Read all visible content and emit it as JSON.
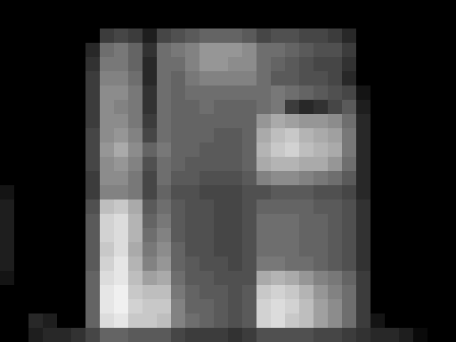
{
  "chart_data": {
    "type": "heatmap",
    "tick_labels": false,
    "cells": [
      [
        0,
        0,
        0,
        0,
        0,
        0,
        0,
        0,
        0,
        0,
        0,
        0,
        0,
        0,
        0,
        0,
        0,
        0,
        0,
        0,
        0,
        0,
        0,
        0,
        0,
        0,
        0,
        0,
        0,
        0,
        0,
        0
      ],
      [
        0,
        0,
        0,
        0,
        0,
        0,
        0,
        0,
        0,
        0,
        0,
        0,
        0,
        0,
        0,
        0,
        0,
        0,
        0,
        0,
        0,
        0,
        0,
        0,
        0,
        0,
        0,
        0,
        0,
        0,
        0,
        0
      ],
      [
        0,
        0,
        0,
        0,
        0,
        0,
        0,
        60,
        70,
        60,
        30,
        70,
        80,
        90,
        100,
        100,
        100,
        90,
        70,
        80,
        80,
        70,
        70,
        60,
        40,
        0,
        0,
        0,
        0,
        0,
        0,
        0
      ],
      [
        0,
        0,
        0,
        0,
        0,
        0,
        40,
        110,
        120,
        100,
        50,
        110,
        120,
        130,
        150,
        150,
        150,
        140,
        110,
        110,
        100,
        90,
        80,
        80,
        60,
        0,
        0,
        0,
        0,
        0,
        0,
        0
      ],
      [
        0,
        0,
        0,
        0,
        0,
        0,
        50,
        120,
        120,
        100,
        40,
        110,
        110,
        130,
        150,
        150,
        140,
        140,
        110,
        100,
        90,
        80,
        70,
        70,
        50,
        0,
        0,
        0,
        0,
        0,
        0,
        0
      ],
      [
        0,
        0,
        0,
        0,
        0,
        0,
        60,
        130,
        130,
        110,
        40,
        110,
        100,
        120,
        130,
        130,
        130,
        130,
        110,
        90,
        90,
        80,
        80,
        70,
        40,
        0,
        0,
        0,
        0,
        0,
        0,
        0
      ],
      [
        0,
        0,
        0,
        0,
        0,
        0,
        60,
        140,
        140,
        120,
        50,
        110,
        100,
        110,
        110,
        110,
        110,
        110,
        110,
        120,
        110,
        100,
        90,
        80,
        70,
        20,
        0,
        0,
        0,
        0,
        0,
        0
      ],
      [
        0,
        0,
        0,
        0,
        0,
        0,
        60,
        140,
        130,
        120,
        50,
        110,
        100,
        100,
        110,
        100,
        100,
        100,
        110,
        120,
        60,
        40,
        50,
        70,
        90,
        30,
        0,
        0,
        0,
        0,
        0,
        0
      ],
      [
        0,
        0,
        0,
        0,
        0,
        0,
        60,
        140,
        140,
        120,
        60,
        110,
        100,
        100,
        100,
        100,
        100,
        100,
        150,
        170,
        160,
        150,
        150,
        140,
        110,
        40,
        0,
        0,
        0,
        0,
        0,
        0
      ],
      [
        0,
        0,
        0,
        0,
        0,
        0,
        70,
        140,
        150,
        130,
        70,
        110,
        100,
        100,
        100,
        90,
        90,
        100,
        170,
        190,
        200,
        180,
        170,
        160,
        120,
        40,
        0,
        0,
        0,
        0,
        0,
        0
      ],
      [
        0,
        0,
        0,
        0,
        0,
        0,
        70,
        150,
        170,
        140,
        100,
        120,
        100,
        100,
        90,
        90,
        90,
        100,
        180,
        200,
        210,
        190,
        180,
        170,
        120,
        40,
        0,
        0,
        0,
        0,
        0,
        0
      ],
      [
        0,
        0,
        0,
        0,
        0,
        0,
        70,
        140,
        150,
        130,
        80,
        110,
        100,
        90,
        90,
        90,
        90,
        100,
        170,
        180,
        180,
        170,
        170,
        150,
        110,
        40,
        0,
        0,
        0,
        0,
        0,
        0
      ],
      [
        0,
        0,
        0,
        0,
        0,
        0,
        60,
        140,
        140,
        120,
        70,
        110,
        90,
        90,
        80,
        80,
        80,
        90,
        130,
        140,
        140,
        130,
        120,
        110,
        90,
        40,
        0,
        0,
        0,
        0,
        0,
        0
      ],
      [
        20,
        0,
        0,
        0,
        0,
        0,
        60,
        130,
        130,
        120,
        70,
        100,
        80,
        80,
        70,
        70,
        70,
        80,
        80,
        90,
        90,
        90,
        80,
        80,
        70,
        40,
        0,
        0,
        0,
        0,
        0,
        0
      ],
      [
        30,
        0,
        0,
        0,
        0,
        0,
        80,
        190,
        200,
        170,
        90,
        110,
        90,
        80,
        80,
        70,
        70,
        80,
        100,
        100,
        100,
        100,
        90,
        90,
        80,
        50,
        0,
        0,
        0,
        0,
        0,
        0
      ],
      [
        30,
        0,
        0,
        0,
        0,
        0,
        90,
        210,
        220,
        180,
        100,
        120,
        90,
        80,
        80,
        70,
        70,
        80,
        110,
        110,
        110,
        100,
        100,
        90,
        80,
        50,
        0,
        0,
        0,
        0,
        0,
        0
      ],
      [
        30,
        0,
        0,
        0,
        0,
        0,
        90,
        210,
        220,
        180,
        110,
        130,
        90,
        80,
        80,
        70,
        70,
        80,
        110,
        110,
        110,
        100,
        100,
        90,
        80,
        50,
        0,
        0,
        0,
        0,
        0,
        0
      ],
      [
        30,
        0,
        0,
        0,
        0,
        0,
        90,
        200,
        220,
        170,
        120,
        140,
        100,
        80,
        80,
        70,
        70,
        80,
        110,
        110,
        110,
        100,
        100,
        90,
        80,
        50,
        0,
        0,
        0,
        0,
        0,
        0
      ],
      [
        30,
        0,
        0,
        0,
        0,
        0,
        90,
        210,
        230,
        180,
        130,
        150,
        100,
        90,
        80,
        80,
        70,
        80,
        120,
        120,
        110,
        110,
        100,
        90,
        80,
        50,
        0,
        0,
        0,
        0,
        0,
        0
      ],
      [
        20,
        0,
        0,
        0,
        0,
        0,
        100,
        220,
        230,
        190,
        160,
        170,
        110,
        90,
        90,
        80,
        80,
        80,
        170,
        180,
        170,
        150,
        130,
        120,
        100,
        60,
        0,
        0,
        0,
        0,
        0,
        0
      ],
      [
        0,
        0,
        0,
        0,
        0,
        0,
        100,
        230,
        240,
        200,
        190,
        190,
        120,
        100,
        90,
        90,
        80,
        90,
        200,
        210,
        200,
        180,
        150,
        130,
        110,
        60,
        0,
        0,
        0,
        0,
        0,
        0
      ],
      [
        0,
        0,
        0,
        0,
        0,
        0,
        100,
        230,
        240,
        210,
        200,
        200,
        130,
        100,
        100,
        90,
        80,
        90,
        210,
        220,
        210,
        190,
        160,
        140,
        110,
        60,
        0,
        0,
        0,
        0,
        0,
        0
      ],
      [
        0,
        0,
        40,
        30,
        0,
        0,
        100,
        220,
        230,
        200,
        200,
        190,
        130,
        110,
        100,
        90,
        80,
        90,
        210,
        220,
        200,
        190,
        160,
        140,
        110,
        60,
        20,
        0,
        0,
        0,
        0,
        0
      ],
      [
        0,
        0,
        30,
        40,
        40,
        50,
        70,
        100,
        100,
        90,
        90,
        90,
        70,
        60,
        60,
        60,
        50,
        60,
        80,
        80,
        80,
        80,
        70,
        70,
        60,
        50,
        40,
        40,
        30,
        10,
        0,
        0
      ]
    ]
  }
}
